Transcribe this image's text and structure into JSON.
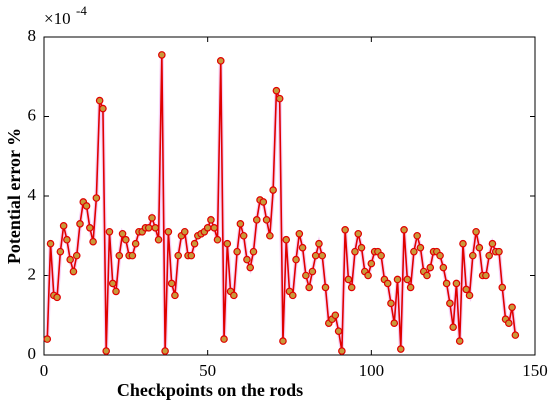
{
  "chart_data": {
    "type": "line",
    "xlabel": "Checkpoints on the rods",
    "ylabel": "Potential error %",
    "y_scale": {
      "base": "×10",
      "exponent": "-4"
    },
    "x": [
      1,
      2,
      3,
      4,
      5,
      6,
      7,
      8,
      9,
      10,
      11,
      12,
      13,
      14,
      15,
      16,
      17,
      18,
      19,
      20,
      21,
      22,
      23,
      24,
      25,
      26,
      27,
      28,
      29,
      30,
      31,
      32,
      33,
      34,
      35,
      36,
      37,
      38,
      39,
      40,
      41,
      42,
      43,
      44,
      45,
      46,
      47,
      48,
      49,
      50,
      51,
      52,
      53,
      54,
      55,
      56,
      57,
      58,
      59,
      60,
      61,
      62,
      63,
      64,
      65,
      66,
      67,
      68,
      69,
      70,
      71,
      72,
      73,
      74,
      75,
      76,
      77,
      78,
      79,
      80,
      81,
      82,
      83,
      84,
      85,
      86,
      87,
      88,
      89,
      90,
      91,
      92,
      93,
      94,
      95,
      96,
      97,
      98,
      99,
      100,
      101,
      102,
      103,
      104,
      105,
      106,
      107,
      108,
      109,
      110,
      111,
      112,
      113,
      114,
      115,
      116,
      117,
      118,
      119,
      120,
      121,
      122,
      123,
      124,
      125,
      126,
      127,
      128,
      129,
      130,
      131,
      132,
      133,
      134,
      135,
      136,
      137,
      138,
      139,
      140,
      141,
      142,
      143,
      144
    ],
    "series": [
      {
        "name": "Potential error",
        "color": "#e00000",
        "marker_fill": "#c89a3a",
        "values": [
          0.4,
          2.8,
          1.5,
          1.45,
          2.6,
          3.25,
          2.9,
          2.4,
          2.1,
          2.5,
          3.3,
          3.85,
          3.75,
          3.2,
          2.85,
          3.95,
          6.4,
          6.2,
          0.1,
          3.1,
          1.8,
          1.6,
          2.5,
          3.05,
          2.9,
          2.5,
          2.5,
          2.8,
          3.1,
          3.1,
          3.2,
          3.2,
          3.45,
          3.2,
          2.9,
          7.55,
          0.1,
          3.1,
          1.8,
          1.5,
          2.5,
          3.0,
          3.1,
          2.5,
          2.5,
          2.8,
          3.0,
          3.05,
          3.1,
          3.2,
          3.4,
          3.2,
          2.9,
          7.4,
          0.4,
          2.8,
          1.6,
          1.5,
          2.6,
          3.3,
          3.0,
          2.4,
          2.2,
          2.6,
          3.4,
          3.9,
          3.85,
          3.4,
          3.0,
          4.15,
          6.65,
          6.45,
          0.35,
          2.9,
          1.6,
          1.5,
          2.4,
          3.05,
          2.7,
          2.0,
          1.7,
          2.1,
          2.5,
          2.8,
          2.5,
          1.7,
          0.8,
          0.9,
          1.0,
          0.6,
          0.1,
          3.15,
          1.9,
          1.7,
          2.6,
          3.05,
          2.7,
          2.1,
          2.0,
          2.3,
          2.6,
          2.6,
          2.5,
          1.9,
          1.8,
          1.3,
          0.8,
          1.9,
          0.15,
          3.15,
          1.9,
          1.7,
          2.6,
          3.0,
          2.7,
          2.1,
          2.0,
          2.2,
          2.6,
          2.6,
          2.5,
          2.2,
          1.8,
          1.3,
          0.7,
          1.8,
          0.35,
          2.8,
          1.65,
          1.5,
          2.5,
          3.1,
          2.7,
          2.0,
          2.0,
          2.5,
          2.8,
          2.6,
          2.6,
          1.7,
          0.9,
          0.8,
          1.2,
          0.5
        ]
      }
    ],
    "xlim": [
      0,
      150
    ],
    "xticks": [
      0,
      50,
      100,
      150
    ],
    "ylim": [
      0,
      8
    ],
    "yticks": [
      0,
      2,
      4,
      6,
      8
    ],
    "grid": false
  }
}
